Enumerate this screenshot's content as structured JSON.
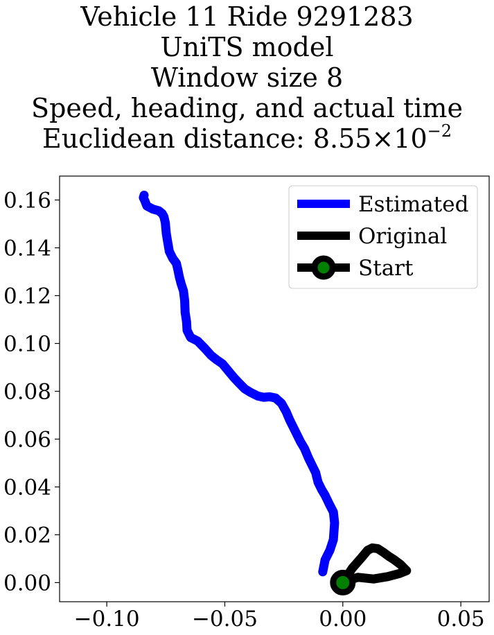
{
  "chart_data": {
    "type": "line",
    "title_lines": [
      "Vehicle 11 Ride 9291283",
      "UniTS model",
      "Window size 8",
      "Speed, heading, and actual time"
    ],
    "title_distance_prefix": "Euclidean distance: ",
    "title_distance_mantissa": "8.55",
    "title_distance_times": "×",
    "title_distance_base": "10",
    "title_distance_exponent": "−2",
    "xlim": [
      -0.12,
      0.062
    ],
    "ylim": [
      -0.008,
      0.17
    ],
    "xticks": [
      -0.1,
      -0.05,
      0.0,
      0.05
    ],
    "xtick_labels": [
      "−0.10",
      "−0.05",
      "0.00",
      "0.05"
    ],
    "yticks": [
      0.0,
      0.02,
      0.04,
      0.06,
      0.08,
      0.1,
      0.12,
      0.14,
      0.16
    ],
    "ytick_labels": [
      "0.00",
      "0.02",
      "0.04",
      "0.06",
      "0.08",
      "0.10",
      "0.12",
      "0.14",
      "0.16"
    ],
    "grid": false,
    "legend_position": "top-right",
    "series": [
      {
        "name": "Estimated",
        "color": "#0000ff",
        "x": [
          -0.0085,
          -0.0075,
          -0.0055,
          -0.004,
          -0.0035,
          -0.004,
          -0.0058,
          -0.0075,
          -0.009,
          -0.0105,
          -0.0115,
          -0.013,
          -0.0145,
          -0.0162,
          -0.018,
          -0.0195,
          -0.021,
          -0.0225,
          -0.024,
          -0.026,
          -0.0285,
          -0.031,
          -0.0335,
          -0.036,
          -0.039,
          -0.0415,
          -0.044,
          -0.0462,
          -0.0485,
          -0.051,
          -0.0535,
          -0.0558,
          -0.0585,
          -0.0615,
          -0.0645,
          -0.066,
          -0.0662,
          -0.0668,
          -0.067,
          -0.0675,
          -0.0685,
          -0.0693,
          -0.0698,
          -0.0705,
          -0.072,
          -0.0735,
          -0.0742,
          -0.0748,
          -0.0752,
          -0.0758,
          -0.0765,
          -0.078,
          -0.0805,
          -0.083,
          -0.0838,
          -0.0845,
          -0.0842
        ],
        "y": [
          0.0045,
          0.0095,
          0.0135,
          0.018,
          0.025,
          0.0295,
          0.033,
          0.0365,
          0.039,
          0.042,
          0.046,
          0.049,
          0.052,
          0.056,
          0.059,
          0.062,
          0.065,
          0.068,
          0.0715,
          0.075,
          0.0772,
          0.0777,
          0.0775,
          0.078,
          0.0795,
          0.081,
          0.0835,
          0.0858,
          0.0885,
          0.0915,
          0.0932,
          0.095,
          0.098,
          0.101,
          0.1025,
          0.1055,
          0.109,
          0.113,
          0.118,
          0.122,
          0.125,
          0.128,
          0.1305,
          0.1335,
          0.1355,
          0.1385,
          0.1425,
          0.146,
          0.1505,
          0.153,
          0.1543,
          0.1555,
          0.1562,
          0.1575,
          0.1595,
          0.161,
          0.162
        ]
      },
      {
        "name": "Original",
        "color": "#000000",
        "x": [
          0.0,
          0.004,
          0.008,
          0.0105,
          0.0125,
          0.0148,
          0.017,
          0.0195,
          0.0218,
          0.0245,
          0.027,
          0.024,
          0.019,
          0.013,
          0.0065,
          0.0005
        ],
        "y": [
          0.0,
          0.006,
          0.0105,
          0.0135,
          0.0145,
          0.0142,
          0.0128,
          0.011,
          0.0095,
          0.0075,
          0.005,
          0.0038,
          0.0025,
          0.0015,
          0.0022,
          0.0005
        ]
      }
    ],
    "start_point": {
      "label": "Start",
      "x": 0.0,
      "y": 0.0,
      "fill": "#008000"
    }
  }
}
